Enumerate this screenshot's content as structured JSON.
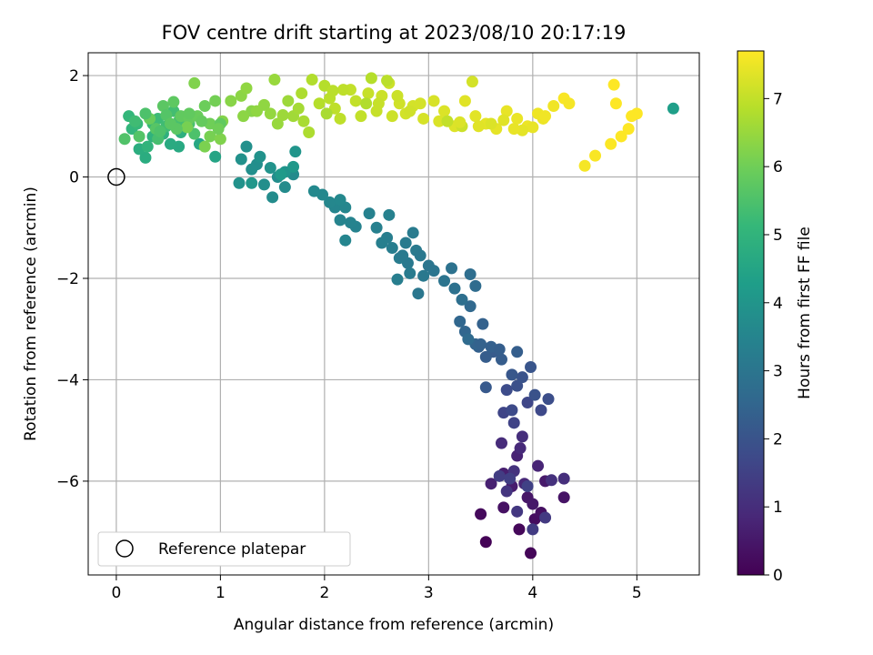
{
  "chart_data": {
    "type": "scatter",
    "title": "FOV centre drift starting at 2023/08/10 20:17:19",
    "xlabel": "Angular distance from reference (arcmin)",
    "ylabel": "Rotation from reference (arcmin)",
    "xlim": [
      -0.27,
      5.6
    ],
    "ylim": [
      -7.85,
      2.45
    ],
    "xticks": [
      "0",
      "1",
      "2",
      "3",
      "4",
      "5"
    ],
    "yticks": [
      "2",
      "0",
      "−2",
      "−4",
      "−6"
    ],
    "grid": true,
    "legend": {
      "position": "lower-left",
      "entries": [
        "Reference platepar"
      ]
    },
    "reference_point": {
      "x": 0,
      "y": 0
    },
    "colorbar": {
      "label": "Hours from first FF file",
      "range": [
        0,
        7.7
      ],
      "ticks": [
        "0",
        "1",
        "2",
        "3",
        "4",
        "5",
        "6",
        "7"
      ]
    },
    "colormap": [
      "#440154",
      "#482878",
      "#3e4989",
      "#31688e",
      "#26828e",
      "#1f9e89",
      "#35b779",
      "#6ece58",
      "#b5de2b",
      "#fde725"
    ],
    "points": [
      [
        3.55,
        -7.2,
        0.05
      ],
      [
        3.98,
        -7.42,
        0.1
      ],
      [
        3.87,
        -6.95,
        0.15
      ],
      [
        3.5,
        -6.65,
        0.2
      ],
      [
        4.02,
        -6.75,
        0.25
      ],
      [
        4.08,
        -6.62,
        0.3
      ],
      [
        3.72,
        -6.52,
        0.35
      ],
      [
        4.3,
        -6.32,
        0.4
      ],
      [
        3.95,
        -6.32,
        0.45
      ],
      [
        4.0,
        -6.45,
        0.5
      ],
      [
        4.12,
        -6.0,
        0.55
      ],
      [
        3.8,
        -6.1,
        0.6
      ],
      [
        3.72,
        -5.85,
        0.65
      ],
      [
        3.6,
        -6.05,
        0.7
      ],
      [
        3.85,
        -5.5,
        0.75
      ],
      [
        4.05,
        -5.7,
        0.8
      ],
      [
        3.92,
        -6.05,
        0.85
      ],
      [
        3.88,
        -5.35,
        0.9
      ],
      [
        3.7,
        -5.25,
        0.95
      ],
      [
        3.9,
        -5.12,
        1.0
      ],
      [
        4.3,
        -5.95,
        1.05
      ],
      [
        4.18,
        -5.98,
        1.1
      ],
      [
        3.82,
        -5.8,
        1.15
      ],
      [
        3.75,
        -6.2,
        1.2
      ],
      [
        3.85,
        -6.6,
        1.25
      ],
      [
        4.12,
        -6.72,
        1.3
      ],
      [
        4.0,
        -6.95,
        1.35
      ],
      [
        3.68,
        -5.9,
        1.4
      ],
      [
        3.78,
        -5.95,
        1.45
      ],
      [
        3.95,
        -6.1,
        1.5
      ],
      [
        3.82,
        -4.85,
        1.55
      ],
      [
        3.72,
        -4.65,
        1.6
      ],
      [
        3.95,
        -4.45,
        1.65
      ],
      [
        4.08,
        -4.6,
        1.7
      ],
      [
        3.8,
        -4.6,
        1.75
      ],
      [
        3.75,
        -4.2,
        1.8
      ],
      [
        4.15,
        -4.38,
        1.85
      ],
      [
        3.85,
        -4.12,
        1.9
      ],
      [
        4.02,
        -4.3,
        1.95
      ],
      [
        3.9,
        -3.95,
        2.0
      ],
      [
        3.98,
        -3.75,
        2.05
      ],
      [
        3.8,
        -3.9,
        2.1
      ],
      [
        3.55,
        -4.15,
        2.15
      ],
      [
        3.62,
        -3.45,
        2.2
      ],
      [
        3.7,
        -3.6,
        2.25
      ],
      [
        3.85,
        -3.45,
        2.3
      ],
      [
        3.48,
        -3.35,
        2.35
      ],
      [
        3.52,
        -2.9,
        2.4
      ],
      [
        3.45,
        -3.3,
        2.45
      ],
      [
        3.35,
        -3.05,
        2.5
      ],
      [
        3.3,
        -2.85,
        2.55
      ],
      [
        3.4,
        -2.55,
        2.6
      ],
      [
        3.38,
        -3.2,
        2.65
      ],
      [
        3.45,
        -2.15,
        2.7
      ],
      [
        3.4,
        -1.92,
        2.75
      ],
      [
        3.32,
        -2.42,
        2.8
      ],
      [
        3.25,
        -2.2,
        2.85
      ],
      [
        3.22,
        -1.8,
        2.9
      ],
      [
        3.15,
        -2.05,
        2.95
      ],
      [
        3.0,
        -1.75,
        3.0
      ],
      [
        2.9,
        -2.3,
        3.05
      ],
      [
        2.95,
        -1.95,
        3.1
      ],
      [
        2.8,
        -1.7,
        3.12
      ],
      [
        2.88,
        -1.45,
        3.15
      ],
      [
        2.78,
        -1.3,
        3.18
      ],
      [
        2.85,
        -1.1,
        3.2
      ],
      [
        2.72,
        -1.6,
        3.22
      ],
      [
        2.65,
        -1.4,
        3.25
      ],
      [
        2.7,
        -2.02,
        3.28
      ],
      [
        2.6,
        -1.2,
        3.3
      ],
      [
        2.55,
        -1.3,
        3.32
      ],
      [
        2.5,
        -1.0,
        3.35
      ],
      [
        2.62,
        -0.75,
        3.38
      ],
      [
        2.43,
        -0.72,
        3.4
      ],
      [
        2.3,
        -0.98,
        3.42
      ],
      [
        2.25,
        -0.9,
        3.45
      ],
      [
        2.15,
        -0.85,
        3.48
      ],
      [
        2.2,
        -1.25,
        3.5
      ],
      [
        2.1,
        -0.6,
        3.52
      ],
      [
        2.2,
        -0.6,
        3.55
      ],
      [
        2.05,
        -0.5,
        3.58
      ],
      [
        1.98,
        -0.35,
        3.6
      ],
      [
        2.15,
        -0.45,
        3.62
      ],
      [
        1.9,
        -0.28,
        3.65
      ],
      [
        1.7,
        0.05,
        3.68
      ],
      [
        1.62,
        -0.2,
        3.7
      ],
      [
        1.5,
        -0.4,
        3.72
      ],
      [
        1.55,
        0.0,
        3.75
      ],
      [
        1.42,
        -0.15,
        3.78
      ],
      [
        1.35,
        0.25,
        3.8
      ],
      [
        1.3,
        0.15,
        3.82
      ],
      [
        1.25,
        0.6,
        3.85
      ],
      [
        1.2,
        0.35,
        3.88
      ],
      [
        1.18,
        -0.12,
        3.9
      ],
      [
        1.38,
        0.4,
        3.92
      ],
      [
        1.48,
        0.18,
        3.95
      ],
      [
        1.62,
        0.1,
        3.98
      ],
      [
        1.72,
        0.5,
        4.0
      ],
      [
        1.3,
        -0.12,
        4.05
      ],
      [
        1.7,
        0.2,
        4.1
      ],
      [
        1.58,
        0.05,
        4.15
      ],
      [
        5.35,
        1.35,
        4.3
      ],
      [
        0.95,
        0.4,
        4.5
      ],
      [
        0.8,
        0.65,
        4.6
      ],
      [
        0.6,
        0.6,
        4.65
      ],
      [
        0.52,
        0.65,
        4.7
      ],
      [
        0.28,
        0.38,
        4.75
      ],
      [
        0.22,
        0.55,
        4.8
      ],
      [
        0.62,
        0.88,
        4.85
      ],
      [
        0.45,
        0.85,
        4.9
      ],
      [
        0.35,
        0.8,
        4.95
      ],
      [
        0.3,
        0.6,
        5.0
      ],
      [
        0.15,
        0.95,
        5.05
      ],
      [
        0.12,
        1.2,
        5.1
      ],
      [
        0.2,
        1.05,
        5.15
      ],
      [
        0.35,
        1.05,
        5.2
      ],
      [
        0.4,
        1.15,
        5.25
      ],
      [
        0.48,
        1.0,
        5.3
      ],
      [
        0.55,
        1.3,
        5.35
      ],
      [
        0.6,
        1.1,
        5.4
      ],
      [
        0.7,
        1.05,
        5.45
      ],
      [
        0.75,
        0.85,
        5.5
      ],
      [
        0.08,
        0.75,
        5.55
      ],
      [
        0.22,
        0.8,
        5.6
      ],
      [
        0.38,
        0.95,
        5.65
      ],
      [
        0.45,
        1.4,
        5.7
      ],
      [
        0.55,
        1.48,
        5.75
      ],
      [
        0.62,
        1.2,
        5.8
      ],
      [
        0.7,
        1.15,
        5.85
      ],
      [
        0.78,
        1.2,
        5.9
      ],
      [
        0.85,
        1.4,
        5.95
      ],
      [
        0.9,
        1.05,
        6.0
      ],
      [
        0.95,
        1.5,
        6.05
      ],
      [
        0.9,
        0.8,
        6.1
      ],
      [
        0.85,
        0.6,
        6.15
      ],
      [
        1.0,
        0.75,
        6.2
      ],
      [
        1.02,
        1.1,
        6.25
      ],
      [
        1.3,
        1.3,
        6.3
      ],
      [
        1.2,
        1.6,
        6.35
      ],
      [
        1.25,
        1.75,
        6.4
      ],
      [
        1.48,
        1.25,
        6.45
      ],
      [
        1.55,
        1.05,
        6.5
      ],
      [
        1.65,
        1.5,
        6.55
      ],
      [
        1.7,
        1.2,
        6.6
      ],
      [
        1.75,
        1.35,
        6.65
      ],
      [
        1.8,
        1.1,
        6.7
      ],
      [
        1.85,
        0.88,
        6.75
      ],
      [
        1.88,
        1.92,
        6.8
      ],
      [
        2.0,
        1.8,
        6.85
      ],
      [
        2.05,
        1.55,
        6.9
      ],
      [
        2.1,
        1.35,
        6.95
      ],
      [
        2.15,
        1.15,
        6.95
      ],
      [
        2.25,
        1.72,
        7.0
      ],
      [
        2.3,
        1.5,
        7.0
      ],
      [
        2.42,
        1.65,
        7.05
      ],
      [
        2.5,
        1.3,
        7.05
      ],
      [
        2.55,
        1.6,
        7.1
      ],
      [
        2.62,
        1.85,
        7.1
      ],
      [
        2.65,
        1.2,
        7.12
      ],
      [
        2.72,
        1.45,
        7.15
      ],
      [
        2.78,
        1.25,
        7.18
      ],
      [
        2.85,
        1.4,
        7.2
      ],
      [
        2.95,
        1.15,
        7.22
      ],
      [
        3.05,
        1.5,
        7.25
      ],
      [
        3.1,
        1.1,
        7.28
      ],
      [
        3.15,
        1.3,
        7.3
      ],
      [
        3.25,
        1.0,
        7.32
      ],
      [
        3.35,
        1.5,
        7.35
      ],
      [
        3.45,
        1.2,
        7.38
      ],
      [
        3.55,
        1.05,
        7.4
      ],
      [
        3.65,
        0.95,
        7.42
      ],
      [
        3.75,
        1.3,
        7.45
      ],
      [
        3.85,
        1.15,
        7.48
      ],
      [
        3.95,
        1.0,
        7.5
      ],
      [
        4.05,
        1.25,
        7.52
      ],
      [
        4.2,
        1.4,
        7.55
      ],
      [
        4.5,
        0.22,
        7.6
      ],
      [
        4.6,
        0.42,
        7.65
      ],
      [
        4.75,
        0.65,
        7.68
      ],
      [
        4.85,
        0.8,
        7.7
      ],
      [
        4.95,
        1.2,
        7.72
      ],
      [
        4.92,
        0.95,
        7.72
      ],
      [
        5.0,
        1.25,
        7.72
      ],
      [
        4.78,
        1.82,
        7.72
      ],
      [
        4.8,
        1.45,
        7.7
      ],
      [
        4.3,
        1.55,
        7.65
      ],
      [
        4.35,
        1.45,
        7.6
      ],
      [
        4.1,
        1.15,
        7.5
      ],
      [
        4.0,
        0.98,
        7.45
      ],
      [
        3.9,
        0.92,
        7.4
      ],
      [
        3.72,
        1.12,
        7.35
      ],
      [
        3.6,
        1.05,
        7.3
      ],
      [
        3.42,
        1.88,
        7.2
      ],
      [
        3.32,
        1.0,
        7.1
      ],
      [
        3.18,
        1.1,
        7.0
      ],
      [
        2.6,
        1.9,
        6.9
      ],
      [
        2.45,
        1.95,
        6.85
      ],
      [
        2.4,
        1.45,
        6.8
      ],
      [
        2.02,
        1.25,
        6.7
      ],
      [
        1.52,
        1.92,
        6.5
      ],
      [
        1.42,
        1.42,
        6.4
      ],
      [
        1.1,
        1.5,
        6.3
      ],
      [
        0.75,
        1.85,
        6.2
      ],
      [
        0.68,
        0.98,
        6.1
      ],
      [
        0.32,
        1.15,
        5.9
      ],
      [
        1.0,
        1.05,
        5.8
      ],
      [
        0.58,
        0.95,
        5.7
      ],
      [
        0.48,
        1.22,
        5.6
      ],
      [
        0.28,
        1.25,
        5.5
      ],
      [
        0.4,
        0.75,
        5.4
      ],
      [
        2.82,
        1.3,
        7.15
      ],
      [
        2.92,
        1.45,
        7.2
      ],
      [
        3.3,
        1.08,
        7.3
      ],
      [
        3.48,
        1.0,
        7.35
      ],
      [
        3.82,
        0.95,
        7.45
      ],
      [
        4.12,
        1.2,
        7.55
      ],
      [
        2.7,
        1.6,
        7.1
      ],
      [
        2.35,
        1.2,
        7.0
      ],
      [
        2.52,
        1.45,
        7.05
      ],
      [
        2.18,
        1.72,
        6.95
      ],
      [
        2.08,
        1.7,
        6.9
      ],
      [
        1.95,
        1.45,
        6.85
      ],
      [
        1.78,
        1.65,
        6.75
      ],
      [
        1.6,
        1.22,
        6.55
      ],
      [
        1.35,
        1.3,
        6.4
      ],
      [
        1.22,
        1.2,
        6.35
      ],
      [
        0.98,
        0.95,
        6.0
      ],
      [
        0.7,
        1.25,
        5.8
      ],
      [
        0.82,
        1.1,
        5.85
      ],
      [
        0.52,
        1.05,
        5.7
      ],
      [
        0.42,
        0.9,
        5.5
      ],
      [
        0.18,
        1.1,
        5.3
      ],
      [
        3.5,
        -3.3,
        2.4
      ],
      [
        3.6,
        -3.35,
        2.35
      ],
      [
        3.68,
        -3.4,
        2.3
      ],
      [
        3.55,
        -3.55,
        2.25
      ],
      [
        3.05,
        -1.85,
        3.0
      ],
      [
        2.92,
        -1.55,
        3.1
      ],
      [
        2.75,
        -1.55,
        3.15
      ],
      [
        2.82,
        -1.9,
        3.2
      ]
    ]
  }
}
